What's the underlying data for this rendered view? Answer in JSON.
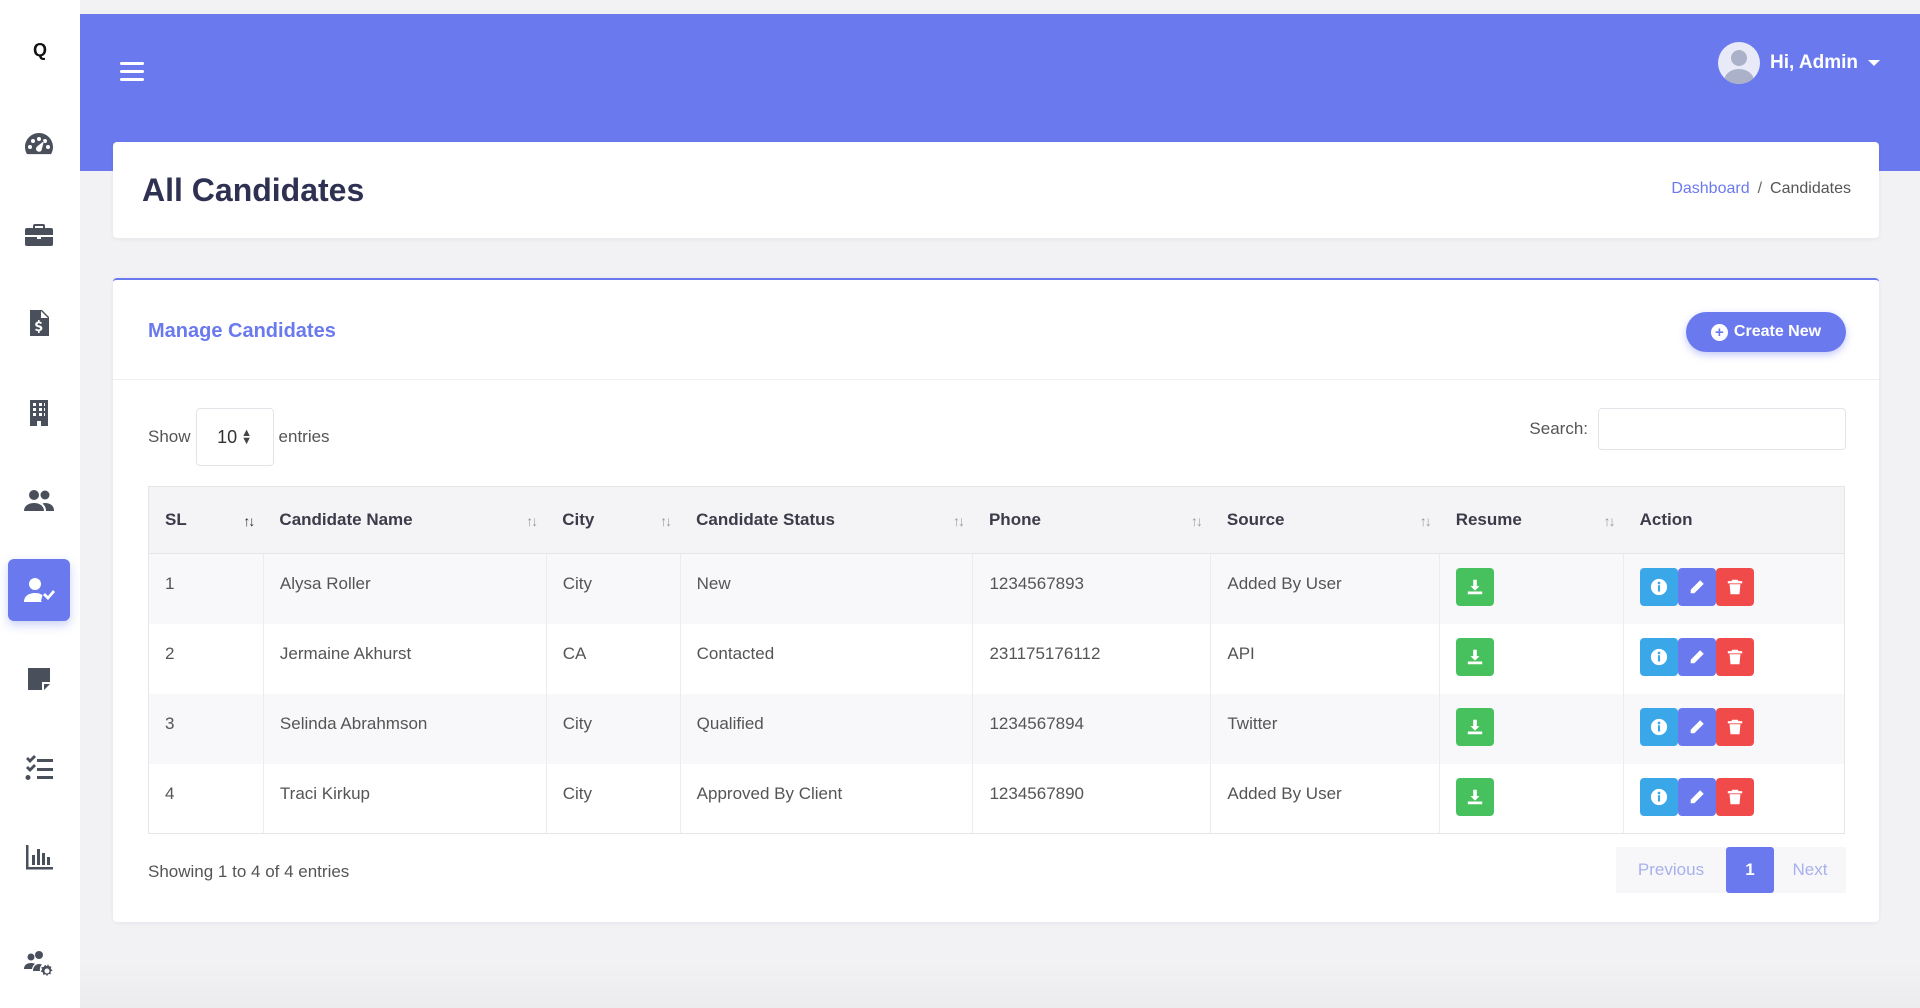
{
  "app": {
    "logo": "Q"
  },
  "sidebar": {
    "items": [
      {
        "icon": "dashboard-gauge-icon",
        "active": false
      },
      {
        "icon": "briefcase-icon",
        "active": false
      },
      {
        "icon": "invoice-icon",
        "active": false
      },
      {
        "icon": "building-icon",
        "active": false
      },
      {
        "icon": "users-icon",
        "active": false
      },
      {
        "icon": "user-check-icon",
        "active": true
      },
      {
        "icon": "note-icon",
        "active": false
      },
      {
        "icon": "task-list-icon",
        "active": false
      },
      {
        "icon": "bar-chart-icon",
        "active": false
      },
      {
        "icon": "team-settings-icon",
        "active": false
      }
    ]
  },
  "header": {
    "user_greeting": "Hi, Admin",
    "accent": "#6a7aee"
  },
  "page": {
    "title": "All Candidates",
    "breadcrumb": {
      "home": "Dashboard",
      "separator": "/",
      "current": "Candidates"
    }
  },
  "card": {
    "title": "Manage Candidates",
    "create_label": "Create New"
  },
  "table_controls": {
    "show_label": "Show",
    "entries_label": "entries",
    "page_length": "10",
    "search_label": "Search:",
    "search_value": ""
  },
  "table": {
    "columns": [
      "SL",
      "Candidate Name",
      "City",
      "Candidate Status",
      "Phone",
      "Source",
      "Resume",
      "Action"
    ],
    "rows": [
      {
        "sl": "1",
        "name": "Alysa Roller",
        "city": "City",
        "status": "New",
        "phone": "1234567893",
        "source": "Added By User"
      },
      {
        "sl": "2",
        "name": "Jermaine Akhurst",
        "city": "CA",
        "status": "Contacted",
        "phone": "231175176112",
        "source": "API"
      },
      {
        "sl": "3",
        "name": "Selinda Abrahmson",
        "city": "City",
        "status": "Qualified",
        "phone": "1234567894",
        "source": "Twitter"
      },
      {
        "sl": "4",
        "name": "Traci Kirkup",
        "city": "City",
        "status": "Approved By Client",
        "phone": "1234567890",
        "source": "Added By User"
      }
    ]
  },
  "footer": {
    "info": "Showing 1 to 4 of 4 entries",
    "pagination": {
      "previous": "Previous",
      "current_page": "1",
      "next": "Next"
    }
  }
}
